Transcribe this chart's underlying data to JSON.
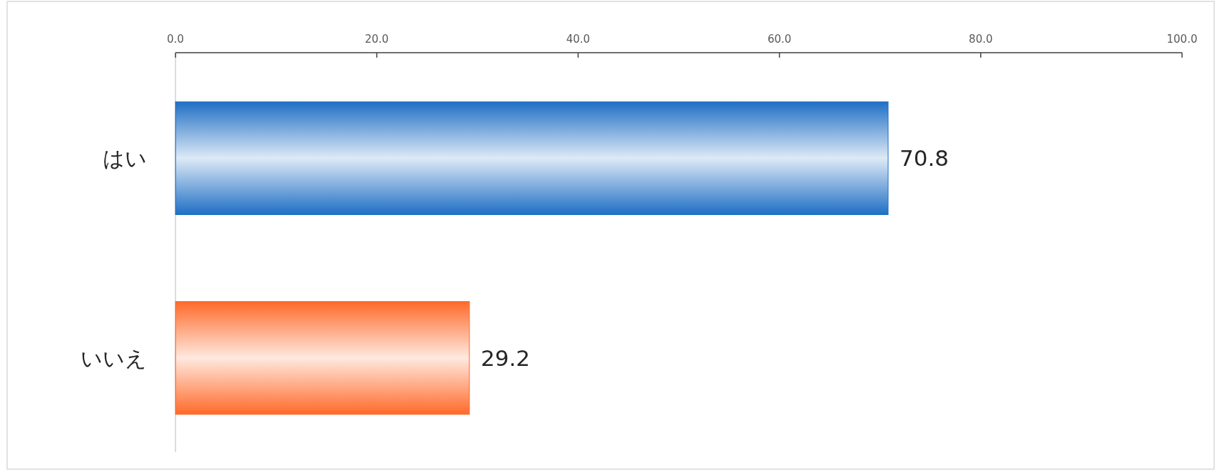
{
  "chart_data": {
    "type": "bar",
    "orientation": "horizontal",
    "categories": [
      "はい",
      "いいえ"
    ],
    "values": [
      70.8,
      29.2
    ],
    "colors": [
      "#1f6fc4",
      "#ff6a2a"
    ],
    "xlim": [
      0,
      100
    ],
    "xticks": [
      {
        "value": 0,
        "label": "0.0"
      },
      {
        "value": 20,
        "label": "20.0"
      },
      {
        "value": 40,
        "label": "40.0"
      },
      {
        "value": 60,
        "label": "60.0"
      },
      {
        "value": 80,
        "label": "80.0"
      },
      {
        "value": 100,
        "label": "100.0"
      }
    ],
    "data_labels": true,
    "grid": false
  }
}
